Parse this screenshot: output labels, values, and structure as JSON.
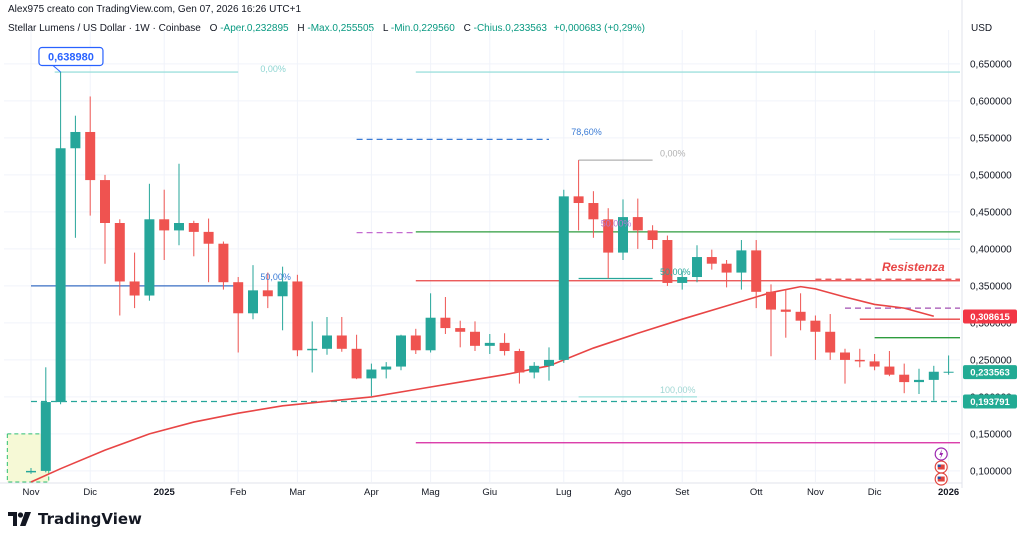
{
  "header": {
    "author_line": "Alex975 creato con TradingView.com, Gen 07, 2026 16:26 UTC+1",
    "symbol": "Stellar Lumens / US Dollar · 1W · Coinbase",
    "o_label": "O",
    "o_value": "-Aper.0,232895",
    "h_label": "H",
    "h_value": "-Max.0,255505",
    "l_label": "L",
    "l_value": "-Min.0,229560",
    "c_label": "C",
    "c_value": "-Chius.0,233563",
    "change": "+0,000683 (+0,29%)"
  },
  "brand": {
    "name": "TradingView"
  },
  "chart_data": {
    "type": "candlestick",
    "y_axis_label": "USD",
    "ylim": [
      0.085,
      0.685
    ],
    "y_ticks": [
      {
        "v": 0.65,
        "label": "0,650000"
      },
      {
        "v": 0.6,
        "label": "0,600000"
      },
      {
        "v": 0.55,
        "label": "0,550000"
      },
      {
        "v": 0.5,
        "label": "0,500000"
      },
      {
        "v": 0.45,
        "label": "0,450000"
      },
      {
        "v": 0.4,
        "label": "0,400000"
      },
      {
        "v": 0.35,
        "label": "0,350000"
      },
      {
        "v": 0.3,
        "label": "0,300000"
      },
      {
        "v": 0.25,
        "label": "0,250000"
      },
      {
        "v": 0.2,
        "label": "0,200000"
      },
      {
        "v": 0.15,
        "label": "0,150000"
      },
      {
        "v": 0.1,
        "label": "0,100000"
      }
    ],
    "x_ticks": [
      {
        "i": 0,
        "label": "Nov"
      },
      {
        "i": 4,
        "label": "Dic"
      },
      {
        "i": 9,
        "label": "2025"
      },
      {
        "i": 14,
        "label": "Feb"
      },
      {
        "i": 18,
        "label": "Mar"
      },
      {
        "i": 23,
        "label": "Apr"
      },
      {
        "i": 27,
        "label": "Mag"
      },
      {
        "i": 31,
        "label": "Giu"
      },
      {
        "i": 36,
        "label": "Lug"
      },
      {
        "i": 40,
        "label": "Ago"
      },
      {
        "i": 44,
        "label": "Set"
      },
      {
        "i": 49,
        "label": "Ott"
      },
      {
        "i": 53,
        "label": "Nov"
      },
      {
        "i": 57,
        "label": "Dic"
      },
      {
        "i": 62,
        "label": "2026"
      }
    ],
    "candles": [
      [
        0.098,
        0.104,
        0.096,
        0.1
      ],
      [
        0.1,
        0.24,
        0.098,
        0.193
      ],
      [
        0.193,
        0.639,
        0.19,
        0.536
      ],
      [
        0.536,
        0.58,
        0.415,
        0.558
      ],
      [
        0.558,
        0.606,
        0.445,
        0.493
      ],
      [
        0.493,
        0.5,
        0.38,
        0.435
      ],
      [
        0.435,
        0.44,
        0.31,
        0.356
      ],
      [
        0.356,
        0.395,
        0.32,
        0.337
      ],
      [
        0.337,
        0.488,
        0.33,
        0.44
      ],
      [
        0.44,
        0.48,
        0.385,
        0.425
      ],
      [
        0.425,
        0.515,
        0.405,
        0.435
      ],
      [
        0.435,
        0.438,
        0.39,
        0.423
      ],
      [
        0.423,
        0.441,
        0.355,
        0.407
      ],
      [
        0.407,
        0.41,
        0.345,
        0.355
      ],
      [
        0.355,
        0.362,
        0.26,
        0.313
      ],
      [
        0.313,
        0.378,
        0.305,
        0.344
      ],
      [
        0.344,
        0.368,
        0.32,
        0.336
      ],
      [
        0.336,
        0.376,
        0.29,
        0.356
      ],
      [
        0.356,
        0.365,
        0.255,
        0.263
      ],
      [
        0.263,
        0.302,
        0.233,
        0.265
      ],
      [
        0.265,
        0.308,
        0.257,
        0.283
      ],
      [
        0.283,
        0.308,
        0.261,
        0.265
      ],
      [
        0.265,
        0.284,
        0.224,
        0.225
      ],
      [
        0.225,
        0.245,
        0.201,
        0.237
      ],
      [
        0.237,
        0.247,
        0.225,
        0.241
      ],
      [
        0.241,
        0.284,
        0.236,
        0.283
      ],
      [
        0.283,
        0.292,
        0.258,
        0.263
      ],
      [
        0.263,
        0.34,
        0.26,
        0.307
      ],
      [
        0.307,
        0.335,
        0.285,
        0.293
      ],
      [
        0.293,
        0.303,
        0.267,
        0.288
      ],
      [
        0.288,
        0.302,
        0.262,
        0.269
      ],
      [
        0.269,
        0.285,
        0.258,
        0.273
      ],
      [
        0.273,
        0.286,
        0.256,
        0.262
      ],
      [
        0.262,
        0.265,
        0.218,
        0.233
      ],
      [
        0.233,
        0.247,
        0.225,
        0.242
      ],
      [
        0.242,
        0.267,
        0.222,
        0.25
      ],
      [
        0.25,
        0.48,
        0.246,
        0.471
      ],
      [
        0.471,
        0.52,
        0.425,
        0.462
      ],
      [
        0.462,
        0.478,
        0.415,
        0.44
      ],
      [
        0.44,
        0.455,
        0.36,
        0.395
      ],
      [
        0.395,
        0.467,
        0.385,
        0.443
      ],
      [
        0.443,
        0.468,
        0.4,
        0.425
      ],
      [
        0.425,
        0.432,
        0.4,
        0.412
      ],
      [
        0.412,
        0.418,
        0.35,
        0.354
      ],
      [
        0.354,
        0.37,
        0.345,
        0.362
      ],
      [
        0.362,
        0.405,
        0.355,
        0.389
      ],
      [
        0.389,
        0.399,
        0.372,
        0.38
      ],
      [
        0.38,
        0.385,
        0.348,
        0.368
      ],
      [
        0.368,
        0.412,
        0.345,
        0.398
      ],
      [
        0.398,
        0.412,
        0.32,
        0.342
      ],
      [
        0.342,
        0.352,
        0.255,
        0.318
      ],
      [
        0.318,
        0.345,
        0.28,
        0.315
      ],
      [
        0.315,
        0.34,
        0.29,
        0.303
      ],
      [
        0.303,
        0.31,
        0.25,
        0.288
      ],
      [
        0.288,
        0.312,
        0.25,
        0.26
      ],
      [
        0.26,
        0.265,
        0.218,
        0.25
      ],
      [
        0.25,
        0.265,
        0.24,
        0.248
      ],
      [
        0.248,
        0.258,
        0.236,
        0.241
      ],
      [
        0.241,
        0.262,
        0.228,
        0.23
      ],
      [
        0.23,
        0.245,
        0.205,
        0.22
      ],
      [
        0.22,
        0.238,
        0.204,
        0.223
      ],
      [
        0.223,
        0.242,
        0.195,
        0.234
      ],
      [
        0.233,
        0.256,
        0.23,
        0.234
      ]
    ],
    "ema_points": [
      [
        0,
        0.085
      ],
      [
        2,
        0.103
      ],
      [
        5,
        0.128
      ],
      [
        8,
        0.15
      ],
      [
        11,
        0.166
      ],
      [
        14,
        0.178
      ],
      [
        17,
        0.188
      ],
      [
        20,
        0.194
      ],
      [
        23,
        0.2
      ],
      [
        26,
        0.21
      ],
      [
        29,
        0.22
      ],
      [
        32,
        0.23
      ],
      [
        35,
        0.242
      ],
      [
        38,
        0.266
      ],
      [
        41,
        0.286
      ],
      [
        44,
        0.305
      ],
      [
        47,
        0.323
      ],
      [
        50,
        0.341
      ],
      [
        52,
        0.349
      ],
      [
        53,
        0.346
      ],
      [
        55,
        0.335
      ],
      [
        57,
        0.325
      ],
      [
        59,
        0.32
      ],
      [
        61,
        0.309
      ]
    ],
    "levels": [
      {
        "name": "low-2024",
        "value": 0.193791,
        "color": "#26a69a",
        "dash": "6,4",
        "from": 0,
        "to": 64
      },
      {
        "name": "fib-0-top",
        "value": 0.639,
        "color": "#9fe0dd",
        "dash": "",
        "from": 1.6,
        "to": 14
      },
      {
        "name": "fib-0-right",
        "value": 0.639,
        "color": "#9fe0dd",
        "dash": "",
        "from": 26,
        "to": 64
      },
      {
        "name": "fib-786",
        "value": 0.548,
        "color": "#3a7bd5",
        "dash": "6,4",
        "from": 22,
        "to": 35
      },
      {
        "name": "fib-50-left",
        "value": 0.35,
        "color": "#3a6fc4",
        "dash": "",
        "from": 0,
        "to": 14
      },
      {
        "name": "green-line",
        "value": 0.423,
        "color": "#2e9c3e",
        "dash": "",
        "from": 26,
        "to": 64
      },
      {
        "name": "violet-left",
        "value": 0.422,
        "color": "#c46bd0",
        "dash": "6,4",
        "from": 22,
        "to": 26
      },
      {
        "name": "red-line",
        "value": 0.357,
        "color": "#e84545",
        "dash": "",
        "from": 26,
        "to": 64
      },
      {
        "name": "resistenza",
        "value": 0.359,
        "color": "#e84545",
        "dash": "6,4",
        "from": 53,
        "to": 64
      },
      {
        "name": "violet-right",
        "value": 0.32,
        "color": "#a24fb0",
        "dash": "6,4",
        "from": 55,
        "to": 64
      },
      {
        "name": "red-short",
        "value": 0.305,
        "color": "#e84545",
        "dash": "",
        "from": 56,
        "to": 64
      },
      {
        "name": "green-short",
        "value": 0.28,
        "color": "#2e9c3e",
        "dash": "",
        "from": 57,
        "to": 64
      },
      {
        "name": "fib-0-right2",
        "value": 0.52,
        "color": "#b0b0b0",
        "dash": "",
        "from": 37,
        "to": 42
      },
      {
        "name": "teal-right",
        "value": 0.413,
        "color": "#9fe0dd",
        "dash": "",
        "from": 58,
        "to": 64
      },
      {
        "name": "teal-50-right",
        "value": 0.36,
        "color": "#26a69a",
        "dash": "",
        "from": 37,
        "to": 42
      },
      {
        "name": "teal-100",
        "value": 0.2,
        "color": "#9fe0dd",
        "dash": "",
        "from": 37,
        "to": 45
      },
      {
        "name": "pink-bottom",
        "value": 0.138,
        "color": "#d6249f",
        "dash": "",
        "from": 26,
        "to": 64
      }
    ],
    "fib_labels": [
      {
        "text": "0,00%",
        "i": 15.5,
        "v": 0.639,
        "color": "#8ed5d2"
      },
      {
        "text": "78,60%",
        "i": 36.5,
        "v": 0.554,
        "color": "#3a7bd5"
      },
      {
        "text": "0,00%",
        "i": 42.5,
        "v": 0.525,
        "color": "#b0b0b0"
      },
      {
        "text": "50,00%",
        "i": 15.5,
        "v": 0.358,
        "color": "#3a7bd5"
      },
      {
        "text": "50,00%",
        "i": 38.5,
        "v": 0.43,
        "color": "#b47bd0"
      },
      {
        "text": "50,00%",
        "i": 42.5,
        "v": 0.365,
        "color": "#26a69a"
      },
      {
        "text": "100,00%",
        "i": 42.5,
        "v": 0.205,
        "color": "#9fd6d3"
      }
    ],
    "annotations": [
      {
        "text": "0,638980",
        "type": "callout",
        "i": 2.7,
        "v": 0.66
      },
      {
        "text": "Resistenza",
        "type": "label",
        "i": 57.5,
        "v": 0.37,
        "color": "#e84545"
      }
    ],
    "price_tags": [
      {
        "value": 0.308615,
        "label": "0,308615",
        "bg": "#f23645"
      },
      {
        "value": 0.233563,
        "label": "0,233563",
        "bg": "#22ab94"
      },
      {
        "value": 0.193791,
        "label": "0,193791",
        "bg": "#22ab94"
      }
    ],
    "colors": {
      "up": "#26a69a",
      "down": "#ef5350",
      "ema": "#e84545",
      "grid": "#f0f3fa",
      "axis_text": "#131722"
    }
  }
}
